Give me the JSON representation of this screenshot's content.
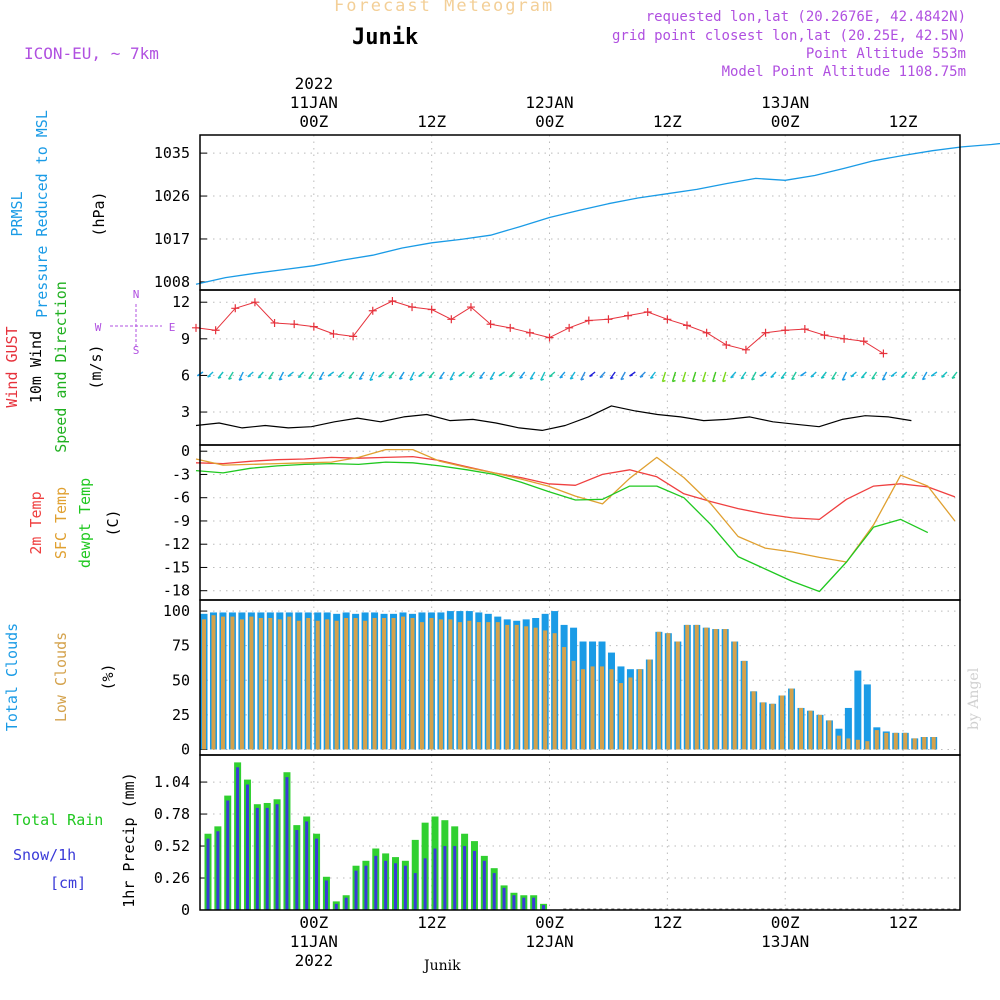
{
  "header": {
    "super_title": "Forecast Meteogram",
    "station": "Junik",
    "model": "ICON-EU, ~ 7km",
    "requested": "requested lon,lat (20.2676E, 42.4842N)",
    "grid_point": "grid point closest lon,lat (20.25E, 42.5N)",
    "point_alt": "Point Altitude 553m",
    "model_alt": "Model Point Altitude 1108.75m",
    "bottom_label": "Junik",
    "watermark": "by Angel"
  },
  "time_axis": {
    "top": [
      {
        "hour": 12,
        "lines": [
          "2022",
          "11JAN",
          "00Z"
        ]
      },
      {
        "hour": 24,
        "lines": [
          "12Z"
        ]
      },
      {
        "hour": 36,
        "lines": [
          "12JAN",
          "00Z"
        ]
      },
      {
        "hour": 48,
        "lines": [
          "12Z"
        ]
      },
      {
        "hour": 60,
        "lines": [
          "13JAN",
          "00Z"
        ]
      },
      {
        "hour": 72,
        "lines": [
          "12Z"
        ]
      }
    ],
    "bottom": [
      {
        "hour": 12,
        "lines": [
          "00Z",
          "11JAN",
          "2022"
        ]
      },
      {
        "hour": 24,
        "lines": [
          "12Z"
        ]
      },
      {
        "hour": 36,
        "lines": [
          "00Z",
          "12JAN"
        ]
      },
      {
        "hour": 48,
        "lines": [
          "12Z"
        ]
      },
      {
        "hour": 60,
        "lines": [
          "00Z",
          "13JAN"
        ]
      },
      {
        "hour": 72,
        "lines": [
          "12Z"
        ]
      }
    ]
  },
  "colors": {
    "pressure": "#1a9be6",
    "gust": "#e6323c",
    "wind": "#000000",
    "temp2m": "#ef4040",
    "sfc": "#e0a030",
    "dewpt": "#20c820",
    "total_cloud": "#1a9be6",
    "low_cloud": "#d4a24c",
    "rain": "#30d030",
    "snow": "#3a3ad8",
    "compass": "#b050e0"
  },
  "chart_data": [
    {
      "type": "line",
      "panel": "pressure",
      "ylabels": [
        {
          "text": "PRMSL",
          "color": "#1a9be6"
        },
        {
          "text": "Pressure Reduced to MSL",
          "color": "#1a9be6"
        },
        {
          "text": "(hPa)",
          "color": "#000000"
        }
      ],
      "yticks": [
        1008,
        1017,
        1026,
        1035
      ],
      "ylim": [
        1006.3,
        1038.8
      ],
      "x_step_hours": 3,
      "series": [
        {
          "values": [
            1007.5,
            1008.9,
            1009.8,
            1010.6,
            1011.4,
            1012.6,
            1013.6,
            1015.1,
            1016.2,
            1016.9,
            1017.8,
            1019.6,
            1021.5,
            1023.0,
            1024.4,
            1025.6,
            1026.5,
            1027.4,
            1028.6,
            1029.7,
            1029.3,
            1030.3,
            1031.8,
            1033.4,
            1034.5,
            1035.5,
            1036.3,
            1036.8,
            1037.5,
            1036.5,
            1036.3,
            1036.6,
            1037.5
          ]
        }
      ]
    },
    {
      "type": "line",
      "panel": "wind",
      "ylabels": [
        {
          "text": "Wind GUST",
          "color": "#e6323c"
        },
        {
          "text": "10m Wind",
          "color": "#000000"
        },
        {
          "text": "Speed and Direction",
          "color": "#20b020"
        },
        {
          "text": "(m/s)",
          "color": "#000000"
        }
      ],
      "yticks": [
        3,
        6,
        9,
        12
      ],
      "ylim": [
        0.3,
        13.0
      ],
      "x_step_hours": 3,
      "compass": {
        "N": "N",
        "S": "S",
        "E": "E",
        "W": "W"
      },
      "series": [
        {
          "name": "Wind GUST",
          "values": [
            9.9,
            9.7,
            11.5,
            12.0,
            10.3,
            10.2,
            10.0,
            9.4,
            9.2,
            11.3,
            12.1,
            11.6,
            11.4,
            10.6,
            11.6,
            10.2,
            9.9,
            9.5,
            9.1,
            9.9,
            10.5,
            10.6,
            10.9,
            11.2,
            10.6,
            10.1,
            9.5,
            8.5,
            8.1,
            9.5,
            9.7,
            9.8,
            9.3,
            9.0,
            8.8,
            7.8
          ]
        },
        {
          "name": "10m Wind",
          "values": [
            1.9,
            2.1,
            1.7,
            1.9,
            1.7,
            1.8,
            2.2,
            2.5,
            2.2,
            2.6,
            2.8,
            2.3,
            2.4,
            2.1,
            1.7,
            1.5,
            1.9,
            2.6,
            3.5,
            3.1,
            2.8,
            2.6,
            2.3,
            2.4,
            2.6,
            2.2,
            2.0,
            1.8,
            2.4,
            2.7,
            2.6,
            2.3
          ]
        }
      ],
      "direction_samples": 76
    },
    {
      "type": "line",
      "panel": "temperature",
      "ylabels": [
        {
          "text": "2m Temp",
          "color": "#ef4040"
        },
        {
          "text": "SFC Temp",
          "color": "#e0a030"
        },
        {
          "text": "dewpt Temp",
          "color": "#20c820"
        },
        {
          "text": "(C)",
          "color": "#000000"
        }
      ],
      "yticks": [
        0,
        -3,
        -6,
        -9,
        -12,
        -15,
        -18
      ],
      "ylim": [
        -19.2,
        0.8
      ],
      "x_step_hours": 3,
      "series": [
        {
          "name": "2m Temp",
          "values": [
            -1.5,
            -1.6,
            -1.3,
            -1.1,
            -1.0,
            -0.8,
            -0.9,
            -0.8,
            -0.7,
            -1.2,
            -2.0,
            -2.8,
            -3.4,
            -4.2,
            -4.4,
            -3.0,
            -2.4,
            -3.3,
            -5.5,
            -6.5,
            -7.4,
            -8.1,
            -8.6,
            -8.8,
            -6.2,
            -4.5,
            -4.2,
            -4.6,
            -5.9
          ]
        },
        {
          "name": "SFC Temp",
          "values": [
            -1.0,
            -1.8,
            -1.7,
            -1.6,
            -1.5,
            -1.4,
            -0.8,
            0.2,
            0.2,
            -1.3,
            -2.1,
            -2.8,
            -3.6,
            -4.5,
            -5.8,
            -6.8,
            -3.5,
            -0.8,
            -3.4,
            -6.8,
            -11.0,
            -12.5,
            -13.0,
            -13.7,
            -14.3,
            -9.5,
            -3.1,
            -4.5,
            -9.0
          ]
        },
        {
          "name": "dewpt Temp",
          "values": [
            -2.5,
            -2.8,
            -2.2,
            -1.9,
            -1.7,
            -1.6,
            -1.7,
            -1.4,
            -1.5,
            -1.9,
            -2.4,
            -3.0,
            -4.0,
            -5.2,
            -6.3,
            -6.2,
            -4.5,
            -4.5,
            -6.0,
            -9.5,
            -13.6,
            -15.2,
            -16.8,
            -18.1,
            -14.3,
            -9.8,
            -8.8,
            -10.5
          ]
        }
      ]
    },
    {
      "type": "bar",
      "panel": "clouds",
      "ylabels": [
        {
          "text": "Total Clouds",
          "color": "#1a9be6"
        },
        {
          "text": "Low Clouds",
          "color": "#d4a24c"
        },
        {
          "text": "(%)",
          "color": "#000000"
        }
      ],
      "yticks": [
        0,
        25,
        50,
        75,
        100
      ],
      "ylim": [
        -4,
        108
      ],
      "bar_step_hours": 1,
      "series": [
        {
          "name": "Total Clouds",
          "values": [
            98,
            99,
            99,
            99,
            99,
            99,
            99,
            99,
            99,
            99,
            99,
            99,
            99,
            99,
            98,
            99,
            98,
            99,
            99,
            98,
            98,
            99,
            98,
            99,
            99,
            99,
            100,
            100,
            100,
            99,
            98,
            96,
            94,
            93,
            94,
            95,
            98,
            100,
            90,
            88,
            78,
            78,
            78,
            70,
            60,
            58,
            58,
            65,
            85,
            84,
            78,
            90,
            90,
            88,
            87,
            87,
            78,
            64,
            42,
            34,
            33,
            39,
            44,
            30,
            28,
            25,
            21,
            15,
            30,
            57,
            47,
            16,
            13,
            12,
            12,
            8,
            9,
            9,
            0,
            0,
            0
          ]
        },
        {
          "name": "Low Clouds",
          "values": [
            94,
            97,
            96,
            96,
            94,
            96,
            95,
            95,
            94,
            96,
            93,
            95,
            93,
            94,
            93,
            95,
            95,
            93,
            95,
            95,
            95,
            96,
            95,
            92,
            95,
            94,
            94,
            92,
            93,
            92,
            92,
            92,
            90,
            90,
            89,
            88,
            86,
            84,
            74,
            64,
            58,
            60,
            60,
            58,
            48,
            52,
            58,
            65,
            85,
            84,
            78,
            90,
            90,
            88,
            87,
            87,
            78,
            64,
            42,
            34,
            33,
            39,
            44,
            30,
            28,
            25,
            21,
            10,
            8,
            7,
            6,
            14,
            12,
            12,
            12,
            8,
            9,
            9,
            0,
            0,
            0
          ]
        }
      ]
    },
    {
      "type": "bar",
      "panel": "precip",
      "ylabels": [
        {
          "text": "Total  Rain",
          "color": "#20c820"
        },
        {
          "text": "Snow/1h",
          "color": "#3a3ad8"
        },
        {
          "text": "[cm]",
          "color": "#3a3ad8"
        },
        {
          "text": "1hr Precip (mm)",
          "color": "#000000"
        }
      ],
      "yticks": [
        0,
        0.26,
        0.52,
        0.78,
        1.04
      ],
      "ylim": [
        0,
        1.26
      ],
      "bar_step_hours": 1,
      "series": [
        {
          "name": "Total Rain",
          "values": [
            0.62,
            0.68,
            0.93,
            1.2,
            1.06,
            0.86,
            0.87,
            0.9,
            1.12,
            0.69,
            0.76,
            0.62,
            0.27,
            0.07,
            0.12,
            0.36,
            0.4,
            0.5,
            0.46,
            0.43,
            0.4,
            0.57,
            0.71,
            0.76,
            0.73,
            0.68,
            0.62,
            0.56,
            0.44,
            0.34,
            0.2,
            0.14,
            0.12,
            0.12,
            0.05,
            0.0
          ]
        },
        {
          "name": "Snow/1h",
          "values": [
            0.58,
            0.64,
            0.89,
            1.16,
            1.02,
            0.83,
            0.83,
            0.86,
            1.08,
            0.65,
            0.72,
            0.58,
            0.24,
            0.05,
            0.1,
            0.32,
            0.36,
            0.44,
            0.4,
            0.38,
            0.36,
            0.3,
            0.42,
            0.5,
            0.52,
            0.52,
            0.52,
            0.48,
            0.4,
            0.3,
            0.18,
            0.12,
            0.1,
            0.1,
            0.04,
            0.0
          ]
        }
      ]
    }
  ]
}
